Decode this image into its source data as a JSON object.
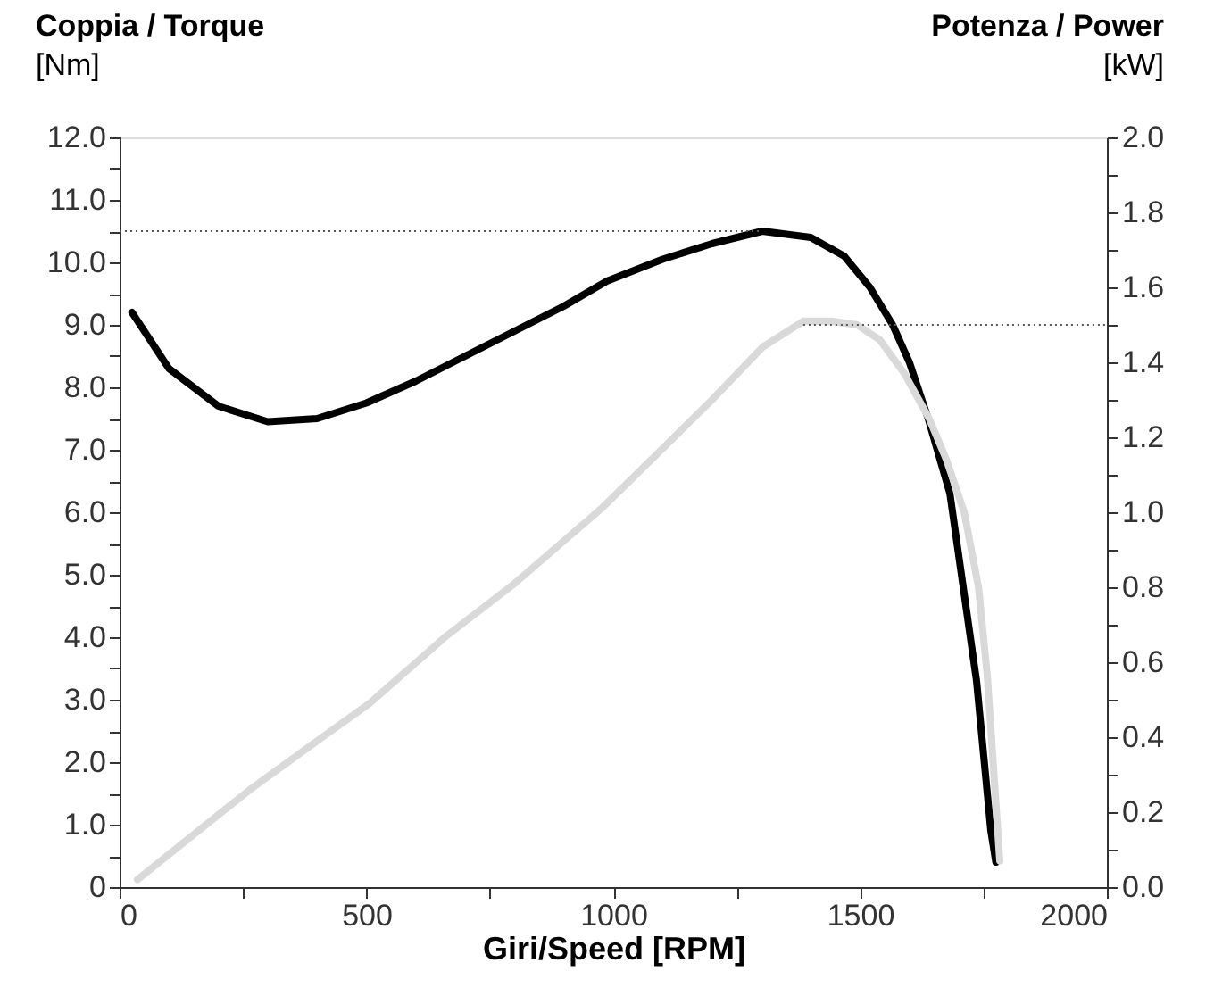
{
  "chart_data": {
    "type": "line",
    "xlabel": "Giri/Speed [RPM]",
    "ylabel": "Coppia / Torque\n[Nm]",
    "y2label": "Potenza / Power\n[kW]",
    "xlim": [
      0,
      2000
    ],
    "ylim": [
      0,
      12
    ],
    "y2lim": [
      0,
      2
    ],
    "xticks": [
      0,
      {
        "value": 250,
        "label": null
      },
      500,
      {
        "value": 750,
        "label": null
      },
      1000,
      {
        "value": 1250,
        "label": null
      },
      1500,
      {
        "value": 1750,
        "label": null
      },
      2000
    ],
    "yticks": [
      {
        "value": 0,
        "label": "0"
      },
      {
        "value": 0.5,
        "label": null
      },
      {
        "value": 1,
        "label": "1.0"
      },
      {
        "value": 1.5,
        "label": null
      },
      {
        "value": 2,
        "label": "2.0"
      },
      {
        "value": 2.5,
        "label": null
      },
      {
        "value": 3,
        "label": "3.0"
      },
      {
        "value": 3.5,
        "label": null
      },
      {
        "value": 4,
        "label": "4.0"
      },
      {
        "value": 4.5,
        "label": null
      },
      {
        "value": 5,
        "label": "5.0"
      },
      {
        "value": 5.5,
        "label": null
      },
      {
        "value": 6,
        "label": "6.0"
      },
      {
        "value": 6.5,
        "label": null
      },
      {
        "value": 7,
        "label": "7.0"
      },
      {
        "value": 7.5,
        "label": null
      },
      {
        "value": 8,
        "label": "8.0"
      },
      {
        "value": 8.5,
        "label": null
      },
      {
        "value": 9,
        "label": "9.0"
      },
      {
        "value": 9.5,
        "label": null
      },
      {
        "value": 10,
        "label": "10.0"
      },
      {
        "value": 10.5,
        "label": null
      },
      {
        "value": 11,
        "label": "11.0"
      },
      {
        "value": 11.5,
        "label": null
      },
      {
        "value": 12,
        "label": "12.0"
      }
    ],
    "y2ticks": [
      {
        "value": 0,
        "label": "0.0"
      },
      {
        "value": 0.1,
        "label": null
      },
      {
        "value": 0.2,
        "label": "0.2"
      },
      {
        "value": 0.3,
        "label": null
      },
      {
        "value": 0.4,
        "label": "0.4"
      },
      {
        "value": 0.5,
        "label": null
      },
      {
        "value": 0.6,
        "label": "0.6"
      },
      {
        "value": 0.7,
        "label": null
      },
      {
        "value": 0.8,
        "label": "0.8"
      },
      {
        "value": 0.9,
        "label": null
      },
      {
        "value": 1,
        "label": "1.0"
      },
      {
        "value": 1.1,
        "label": null
      },
      {
        "value": 1.2,
        "label": "1.2"
      },
      {
        "value": 1.3,
        "label": null
      },
      {
        "value": 1.4,
        "label": "1.4"
      },
      {
        "value": 1.5,
        "label": null
      },
      {
        "value": 1.6,
        "label": "1.6"
      },
      {
        "value": 1.7,
        "label": null
      },
      {
        "value": 1.8,
        "label": "1.8"
      },
      {
        "value": 1.9,
        "label": null
      },
      {
        "value": 2,
        "label": "2.0"
      }
    ],
    "grid": false,
    "marker": "none",
    "line_style": "solid",
    "series": [
      {
        "color": "#000000",
        "axis": "y",
        "x": [
          25,
          100,
          200,
          300,
          400,
          500,
          600,
          700,
          800,
          900,
          987,
          1100,
          1200,
          1302,
          1400,
          1468,
          1520,
          1566,
          1600,
          1638,
          1682,
          1700,
          1736,
          1765,
          1775
        ],
        "values": [
          9.2,
          8.3,
          7.7,
          7.45,
          7.5,
          7.75,
          8.1,
          8.5,
          8.9,
          9.3,
          9.7,
          10.05,
          10.3,
          10.5,
          10.4,
          10.1,
          9.6,
          9.0,
          8.4,
          7.5,
          6.3,
          5.3,
          3.3,
          0.9,
          0.4
        ]
      },
      {
        "color": "#d9d9d9",
        "axis": "y2",
        "x": [
          36,
          150,
          264,
          400,
          506,
          662,
          800,
          976,
          1100,
          1200,
          1302,
          1385,
          1440,
          1494,
          1540,
          1590,
          1640,
          1675,
          1711,
          1740,
          1758,
          1783
        ],
        "values": [
          0.02,
          0.14,
          0.26,
          0.39,
          0.49,
          0.67,
          0.81,
          1.01,
          1.17,
          1.3,
          1.44,
          1.51,
          1.51,
          1.5,
          1.46,
          1.37,
          1.25,
          1.14,
          1.0,
          0.8,
          0.56,
          0.07
        ]
      }
    ],
    "ref_lines": [
      {
        "axis": "y",
        "value": 10.5,
        "color": "#555555",
        "line_style": "dotted"
      },
      {
        "axis": "y2",
        "value": 1.5,
        "color": "#555555",
        "line_style": "dotted"
      }
    ]
  }
}
